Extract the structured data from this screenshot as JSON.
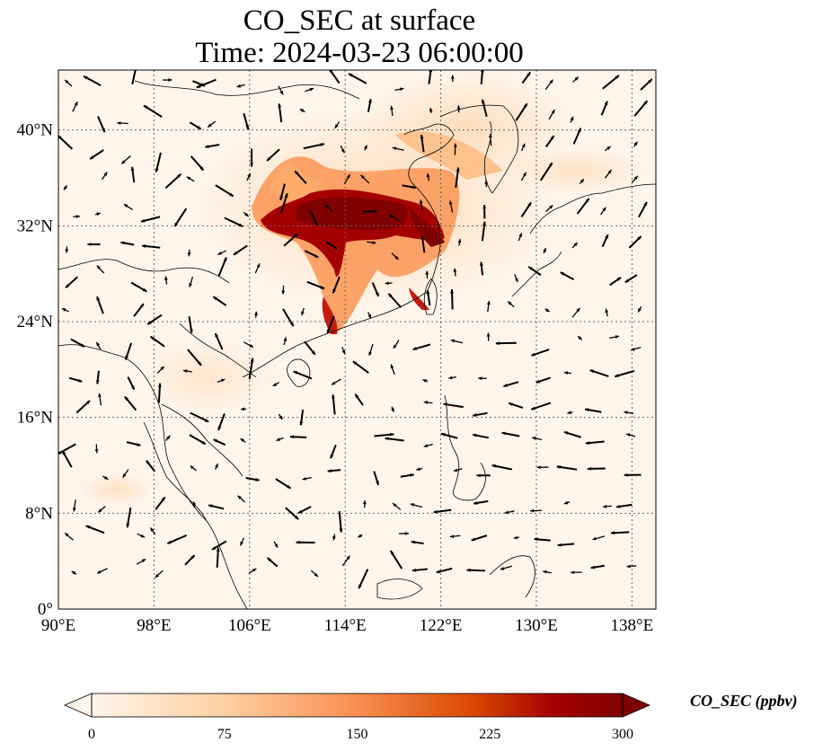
{
  "title": {
    "line1": "CO_SEC at surface",
    "line2": "Time: 2024-03-23 06:00:00"
  },
  "axes": {
    "lat_ticks": [
      "0°",
      "8°N",
      "16°N",
      "24°N",
      "32°N",
      "40°N"
    ],
    "lon_ticks": [
      "90°E",
      "98°E",
      "106°E",
      "114°E",
      "122°E",
      "130°E",
      "138°E"
    ],
    "lat_values": [
      0,
      8,
      16,
      24,
      32,
      40
    ],
    "lon_values": [
      90,
      98,
      106,
      114,
      122,
      130,
      138
    ],
    "extent": {
      "lon_min": 90,
      "lon_max": 140,
      "lat_min": 0,
      "lat_max": 45
    },
    "gridlines": "dotted"
  },
  "colorbar": {
    "label": "CO_SEC (ppbv)",
    "ticks": [
      "0",
      "75",
      "150",
      "225",
      "300"
    ],
    "range": [
      0,
      300
    ],
    "extend": "both",
    "colors": [
      "#fff5eb",
      "#fdd0a2",
      "#fd8d3c",
      "#d94801",
      "#a50000",
      "#7f0000"
    ]
  },
  "colors": {
    "background_field": "#fff5eb",
    "coastline": "#000000",
    "wind_arrow": "#000000"
  }
}
